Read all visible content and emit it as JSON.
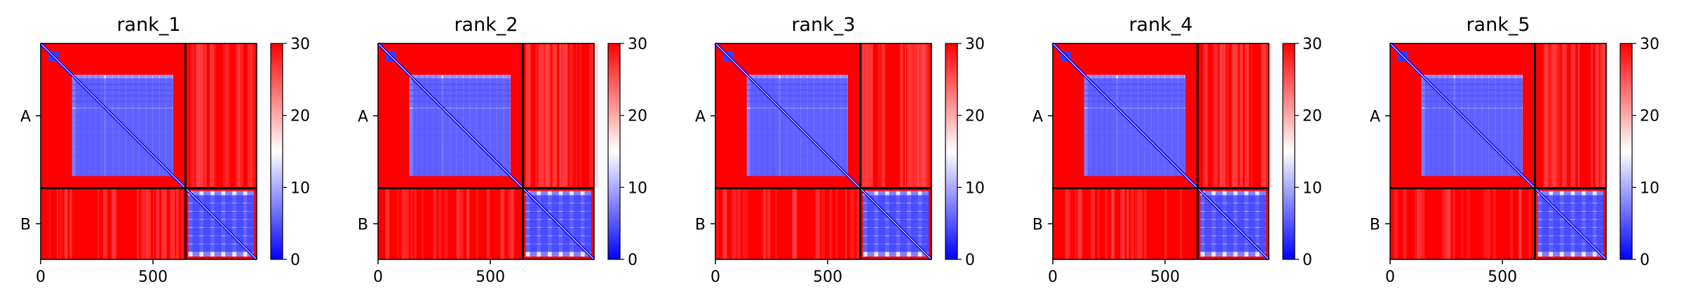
{
  "chart_data": {
    "type": "heatmap",
    "colormap": {
      "name": "bwr",
      "low": "#0000ff",
      "mid": "#ffffff",
      "high": "#ff0000"
    },
    "color_range": [
      0,
      30
    ],
    "colorbar_ticks": [
      "0",
      "10",
      "20",
      "30"
    ],
    "x_ticks": [
      0,
      500
    ],
    "x_tick_labels": [
      "0",
      "500"
    ],
    "x_range": [
      0,
      962
    ],
    "chains": [
      {
        "label": "A",
        "start": 0,
        "end": 645
      },
      {
        "label": "B",
        "start": 645,
        "end": 962
      }
    ],
    "panels": [
      {
        "title": "rank_1"
      },
      {
        "title": "rank_2"
      },
      {
        "title": "rank_3"
      },
      {
        "title": "rank_4"
      },
      {
        "title": "rank_5"
      }
    ],
    "grid": false
  }
}
